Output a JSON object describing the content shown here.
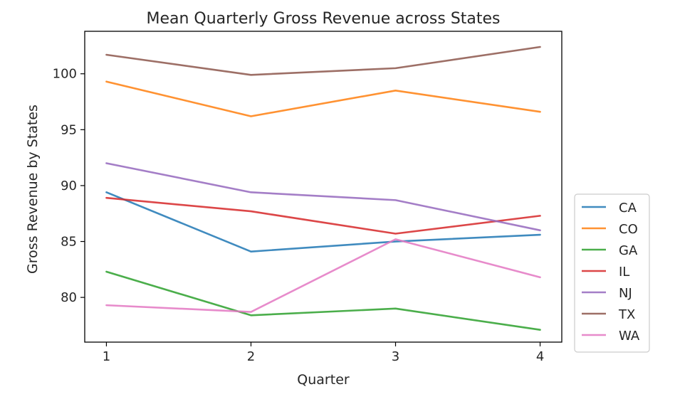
{
  "chart_data": {
    "type": "line",
    "title": "Mean Quarterly Gross Revenue across States",
    "xlabel": "Quarter",
    "ylabel": "Gross Revenue by States",
    "x": [
      1,
      2,
      3,
      4
    ],
    "xticks": [
      "1",
      "2",
      "3",
      "4"
    ],
    "yticks": [
      "80",
      "85",
      "90",
      "95",
      "100"
    ],
    "ytick_values": [
      80,
      85,
      90,
      95,
      100
    ],
    "xlim": [
      0.85,
      4.15
    ],
    "ylim": [
      76.0,
      103.8
    ],
    "grid": false,
    "legend_position": "outside right, bottom",
    "series": [
      {
        "name": "CA",
        "color": "#1f77b4",
        "values": [
          89.4,
          84.1,
          85.0,
          85.6
        ]
      },
      {
        "name": "CO",
        "color": "#ff7f0e",
        "values": [
          99.3,
          96.2,
          98.5,
          96.6
        ]
      },
      {
        "name": "GA",
        "color": "#2ca02c",
        "values": [
          82.3,
          78.4,
          79.0,
          77.1
        ]
      },
      {
        "name": "IL",
        "color": "#d62728",
        "values": [
          88.9,
          87.7,
          85.7,
          87.3
        ]
      },
      {
        "name": "NJ",
        "color": "#9467bd",
        "values": [
          92.0,
          89.4,
          88.7,
          86.0
        ]
      },
      {
        "name": "TX",
        "color": "#8c564b",
        "values": [
          101.7,
          99.9,
          100.5,
          102.4
        ]
      },
      {
        "name": "WA",
        "color": "#e377c2",
        "values": [
          79.3,
          78.7,
          85.2,
          81.8
        ]
      }
    ]
  }
}
